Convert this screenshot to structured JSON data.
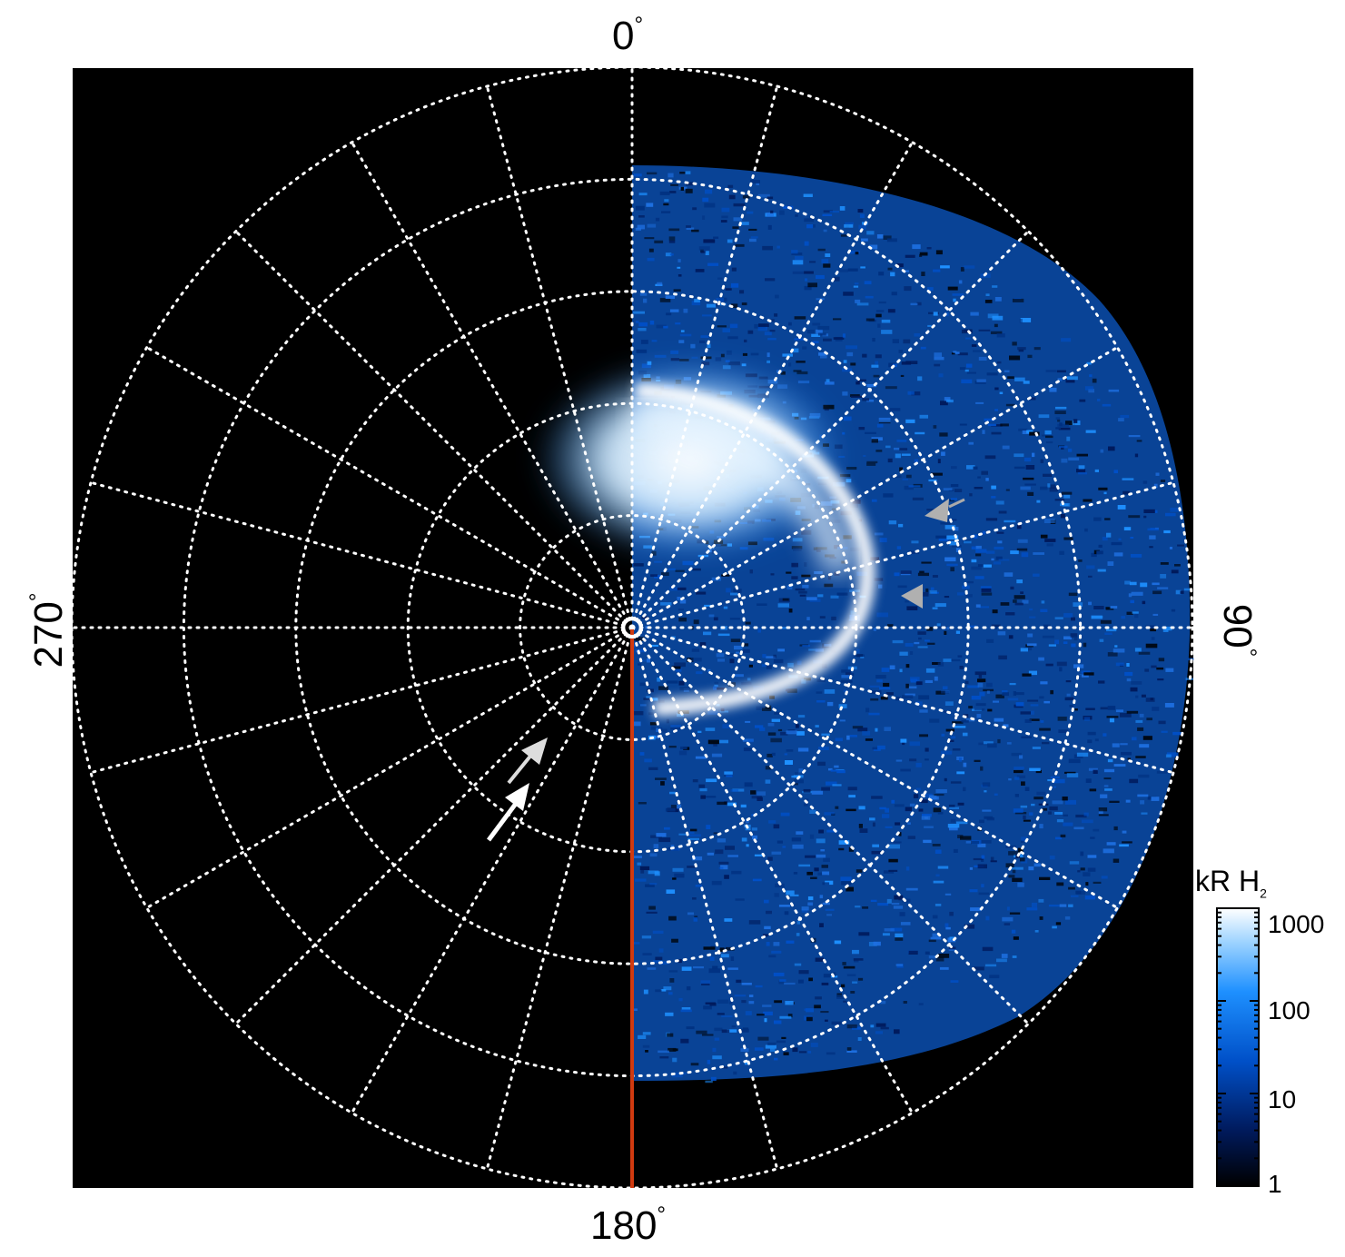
{
  "figure": {
    "labels": {
      "top": "0",
      "right": "90",
      "bottom": "180",
      "left": "270",
      "degree_symbol": "°"
    },
    "colorbar": {
      "title_main": "kR H",
      "title_sub": "2",
      "ticks": [
        "1000",
        "100",
        "10",
        "1"
      ],
      "scale": "log",
      "range": [
        1,
        1000
      ],
      "colors": [
        "#000000",
        "#001a5c",
        "#0050c8",
        "#1e90ff",
        "#9fd4ff",
        "#ffffff"
      ]
    },
    "grid": {
      "style": "dotted",
      "color": "#ffffff",
      "rings": 5,
      "spokes_deg": 15
    },
    "meridian_line_color": "#d03a10",
    "background": "#000000",
    "aurora_color": "#1e90ff"
  }
}
